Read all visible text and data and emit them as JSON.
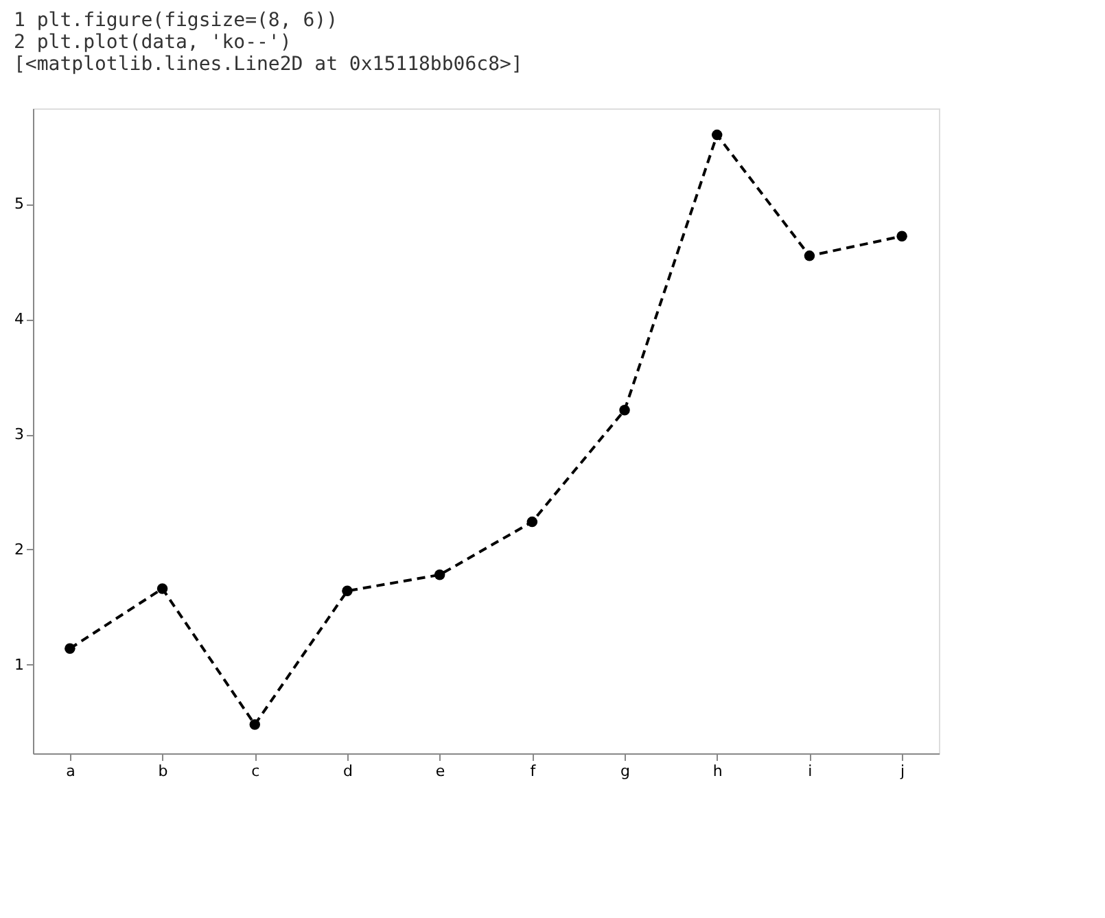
{
  "chart_data": {
    "type": "line",
    "annotations": [
      "1  plt.figure(figsize=(8, 6))",
      "2  plt.plot(data, 'ko--')",
      "[<matplotlib.lines.Line2D at 0x15118bb06c8>]"
    ],
    "categories": [
      "a",
      "b",
      "c",
      "d",
      "e",
      "f",
      "g",
      "h",
      "i",
      "j"
    ],
    "series": [
      {
        "color": "#000000",
        "values": [
          1.14,
          1.66,
          0.48,
          1.64,
          1.78,
          2.24,
          3.21,
          5.6,
          4.55,
          4.72
        ]
      }
    ],
    "ylim": [
      0.23,
      5.83
    ],
    "yticks": [
      1,
      2,
      3,
      4,
      5
    ],
    "grid": false,
    "marker": "circle",
    "line_style": "dashed"
  }
}
